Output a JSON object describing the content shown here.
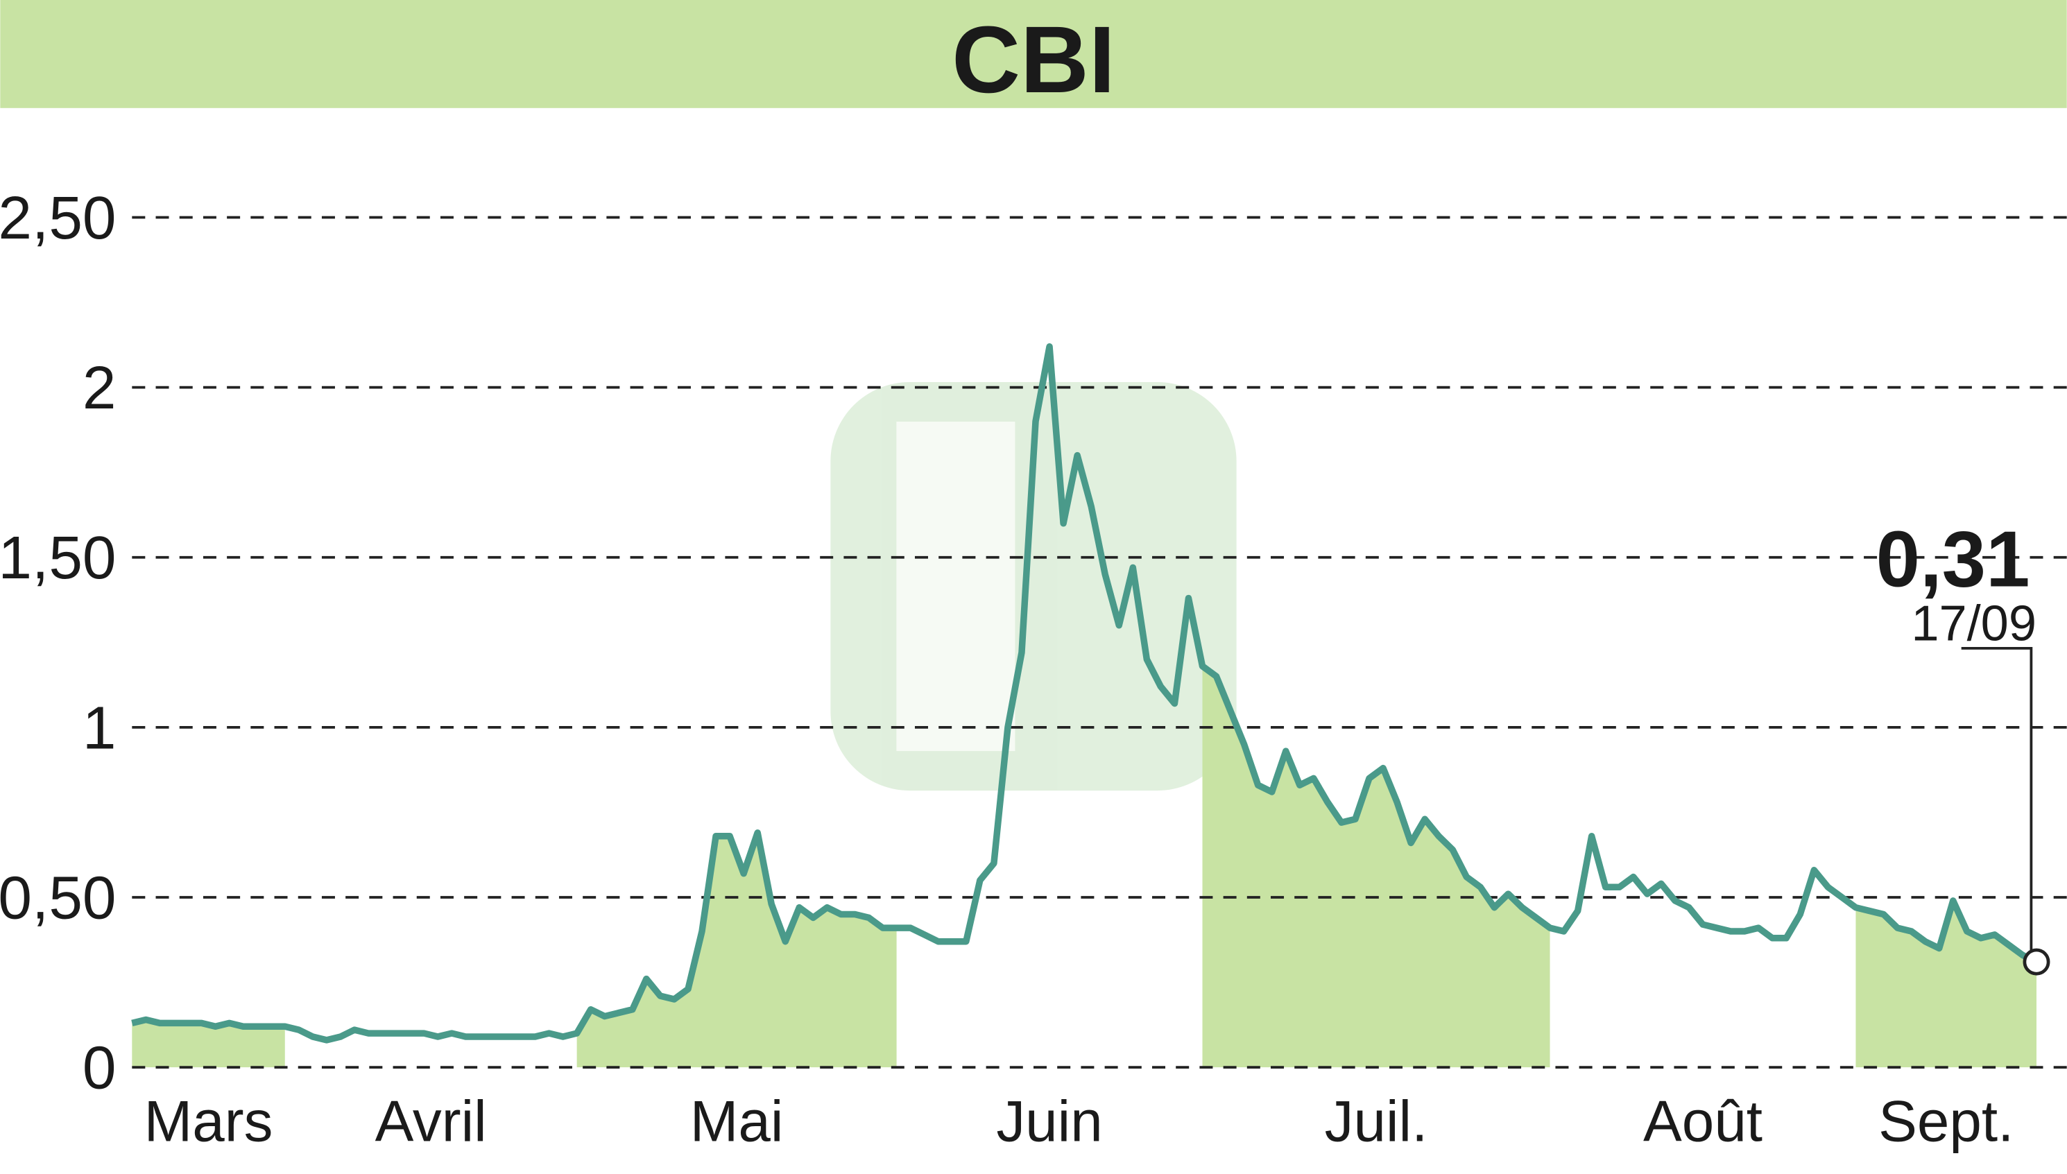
{
  "chart_data": {
    "type": "line",
    "title": "CBI",
    "values": [
      0.13,
      0.14,
      0.13,
      0.13,
      0.13,
      0.13,
      0.12,
      0.13,
      0.12,
      0.12,
      0.12,
      0.12,
      0.11,
      0.09,
      0.08,
      0.09,
      0.11,
      0.1,
      0.1,
      0.1,
      0.1,
      0.1,
      0.09,
      0.1,
      0.09,
      0.09,
      0.09,
      0.09,
      0.09,
      0.09,
      0.1,
      0.09,
      0.1,
      0.17,
      0.15,
      0.16,
      0.17,
      0.26,
      0.21,
      0.2,
      0.23,
      0.4,
      0.68,
      0.68,
      0.57,
      0.69,
      0.48,
      0.37,
      0.47,
      0.44,
      0.47,
      0.45,
      0.45,
      0.44,
      0.41,
      0.41,
      0.41,
      0.39,
      0.37,
      0.37,
      0.37,
      0.55,
      0.6,
      1.0,
      1.22,
      1.9,
      2.12,
      1.6,
      1.8,
      1.65,
      1.45,
      1.3,
      1.47,
      1.2,
      1.12,
      1.07,
      1.38,
      1.18,
      1.15,
      1.05,
      0.95,
      0.83,
      0.81,
      0.93,
      0.83,
      0.85,
      0.78,
      0.72,
      0.73,
      0.85,
      0.88,
      0.78,
      0.66,
      0.73,
      0.68,
      0.64,
      0.56,
      0.53,
      0.47,
      0.51,
      0.47,
      0.44,
      0.41,
      0.4,
      0.46,
      0.68,
      0.53,
      0.53,
      0.56,
      0.51,
      0.54,
      0.49,
      0.47,
      0.42,
      0.41,
      0.4,
      0.4,
      0.41,
      0.38,
      0.38,
      0.45,
      0.58,
      0.53,
      0.5,
      0.47,
      0.46,
      0.45,
      0.41,
      0.4,
      0.37,
      0.35,
      0.49,
      0.4,
      0.38,
      0.39,
      0.36,
      0.33,
      0.31
    ],
    "color": "#4a9a8a",
    "area_color": "#c8e3a3",
    "xlim": [
      0,
      137
    ],
    "xticks": [
      {
        "value": 0,
        "label": "Mars"
      },
      {
        "value": 11,
        "label": "Avril"
      },
      {
        "value": 32,
        "label": "Mai"
      },
      {
        "value": 55,
        "label": "Juin"
      },
      {
        "value": 77,
        "label": "Juil."
      },
      {
        "value": 102,
        "label": "Août"
      },
      {
        "value": 124,
        "label": "Sept."
      }
    ],
    "ylim": [
      0,
      2.5
    ],
    "yticks": [
      {
        "value": 0,
        "label": "0"
      },
      {
        "value": 0.5,
        "label": "0,50"
      },
      {
        "value": 1,
        "label": "1"
      },
      {
        "value": 1.5,
        "label": "1,50"
      },
      {
        "value": 2,
        "label": "2"
      },
      {
        "value": 2.5,
        "label": "2,50"
      }
    ],
    "grid": true,
    "annotation": {
      "value_label": "0,31",
      "date": "17/09"
    }
  }
}
